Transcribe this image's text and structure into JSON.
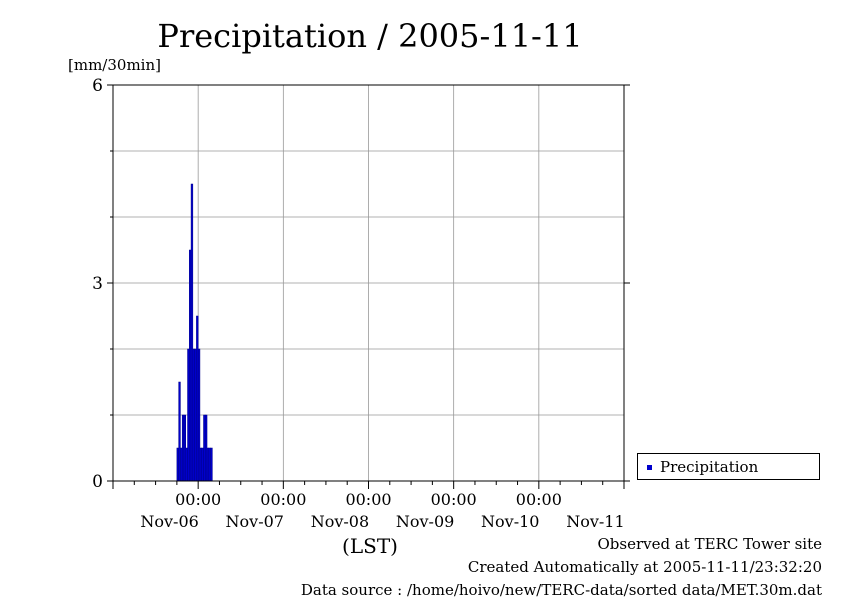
{
  "chart_data": {
    "type": "bar",
    "title": "Precipitation / 2005-11-11",
    "ylabel": "[mm/30min]",
    "xlabel": "(LST)",
    "ylim": [
      0,
      6
    ],
    "y_ticks": [
      0,
      3,
      6
    ],
    "x_tick_time_label": "00:00",
    "x_tick_dates": [
      "Nov-06",
      "Nov-07",
      "Nov-08",
      "Nov-09",
      "Nov-10",
      "Nov-11"
    ],
    "x_range_days": [
      -1,
      5
    ],
    "grid": true,
    "legend_position": "right",
    "series": [
      {
        "name": "Precipitation",
        "color": "#0000cc",
        "x": [
          "Nov-06 18:00",
          "Nov-06 18:30",
          "Nov-06 19:00",
          "Nov-06 19:30",
          "Nov-06 20:00",
          "Nov-06 20:30",
          "Nov-06 21:00",
          "Nov-06 21:30",
          "Nov-06 22:00",
          "Nov-06 22:30",
          "Nov-06 23:00",
          "Nov-06 23:30",
          "Nov-07 00:00",
          "Nov-07 00:30",
          "Nov-07 01:00",
          "Nov-07 01:30",
          "Nov-07 02:00",
          "Nov-07 02:30",
          "Nov-07 03:00",
          "Nov-07 03:30"
        ],
        "values": [
          0.5,
          1.5,
          0.5,
          1.0,
          1.0,
          0.5,
          2.0,
          3.5,
          4.5,
          2.0,
          2.0,
          2.5,
          2.0,
          0.5,
          0.5,
          1.0,
          1.0,
          0.5,
          0.5,
          0.5
        ]
      }
    ]
  },
  "footer": {
    "site": "Observed at TERC Tower site",
    "created": "Created Automatically at 2005-11-11/23:32:20",
    "source": "Data source : /home/hoivo/new/TERC-data/sorted data/MET.30m.dat"
  }
}
